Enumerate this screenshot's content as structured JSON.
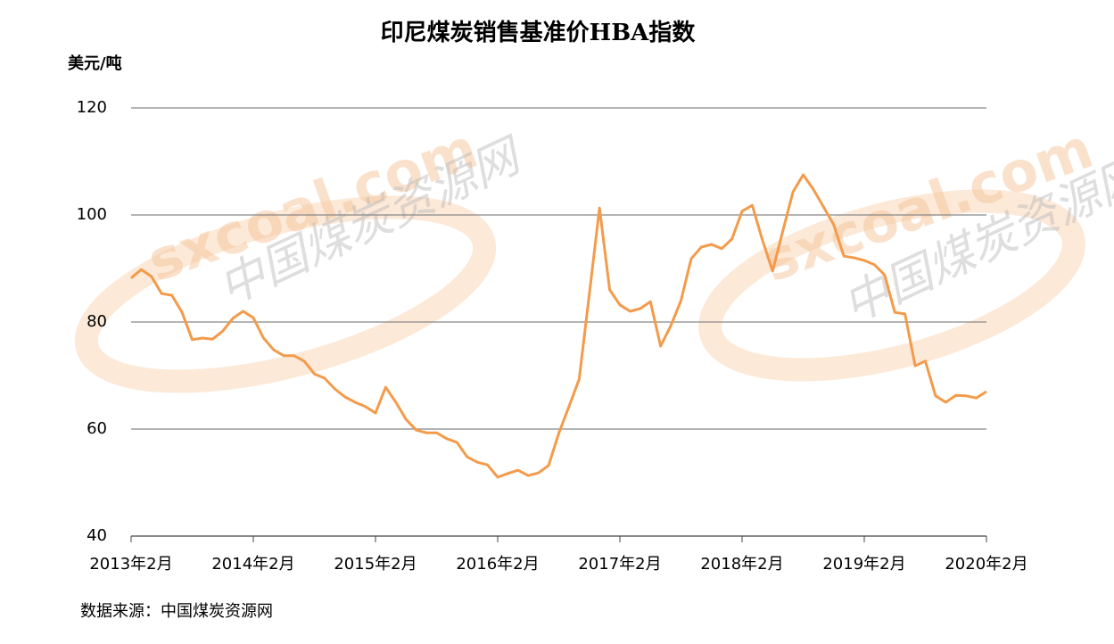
{
  "chart_data": {
    "type": "line",
    "title": "印尼煤炭销售基准价HBA指数",
    "y_label": "美元/吨",
    "source": "数据来源：中国煤炭资源网",
    "watermark": [
      "sxcoal.com",
      "中国煤炭资源网"
    ],
    "categories": [
      "2013年2月",
      null,
      null,
      null,
      null,
      null,
      null,
      null,
      null,
      null,
      null,
      null,
      "2014年2月",
      null,
      null,
      null,
      null,
      null,
      null,
      null,
      null,
      null,
      null,
      null,
      "2015年2月",
      null,
      null,
      null,
      null,
      null,
      null,
      null,
      null,
      null,
      null,
      null,
      "2016年2月",
      null,
      null,
      null,
      null,
      null,
      null,
      null,
      null,
      null,
      null,
      null,
      "2017年2月",
      null,
      null,
      null,
      null,
      null,
      null,
      null,
      null,
      null,
      null,
      null,
      "2018年2月",
      null,
      null,
      null,
      null,
      null,
      null,
      null,
      null,
      null,
      null,
      null,
      "2019年2月",
      null,
      null,
      null,
      null,
      null,
      null,
      null,
      null,
      null,
      null,
      null,
      "2020年2月"
    ],
    "series": [
      {
        "name": "HBA",
        "color": "#f39b4b",
        "values": [
          88.2,
          89.8,
          88.5,
          85.3,
          85,
          81.8,
          76.7,
          77,
          76.8,
          78.3,
          80.7,
          82,
          80.8,
          77,
          74.8,
          73.7,
          73.7,
          72.7,
          70.3,
          69.5,
          67.5,
          66,
          65,
          64.2,
          63,
          67.8,
          65,
          61.8,
          59.8,
          59.3,
          59.3,
          58.2,
          57.5,
          54.8,
          53.8,
          53.3,
          51,
          51.7,
          52.3,
          51.3,
          51.8,
          53.2,
          59.2,
          64.2,
          69.3,
          85.2,
          101.3,
          86,
          83.2,
          82,
          82.5,
          83.8,
          75.5,
          79.3,
          84,
          91.8,
          94,
          94.5,
          93.7,
          95.5,
          100.7,
          101.8,
          95.3,
          89.5,
          97,
          104.3,
          107.5,
          104.8,
          101.5,
          98.2,
          92.3,
          92,
          91.5,
          90.7,
          88.8,
          81.8,
          81.5,
          71.8,
          72.7,
          66.2,
          65,
          66.3,
          66.2,
          65.8,
          67
        ]
      }
    ],
    "ylim": [
      40,
      120
    ],
    "yticks": [
      40,
      60,
      80,
      100,
      120
    ],
    "grid": true
  }
}
